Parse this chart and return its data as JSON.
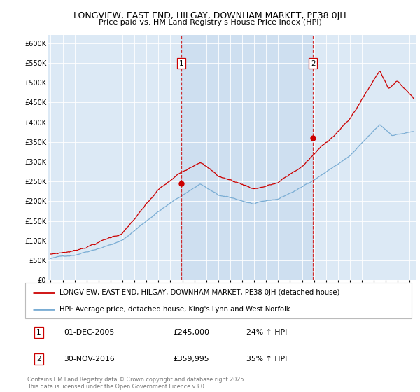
{
  "title": "LONGVIEW, EAST END, HILGAY, DOWNHAM MARKET, PE38 0JH",
  "subtitle": "Price paid vs. HM Land Registry's House Price Index (HPI)",
  "plot_bg_color": "#dce9f5",
  "shade_color": "#c5d9ee",
  "red_line_label": "LONGVIEW, EAST END, HILGAY, DOWNHAM MARKET, PE38 0JH (detached house)",
  "blue_line_label": "HPI: Average price, detached house, King's Lynn and West Norfolk",
  "red_color": "#cc0000",
  "blue_color": "#7aadd4",
  "ylim": [
    0,
    620000
  ],
  "ytick_vals": [
    0,
    50000,
    100000,
    150000,
    200000,
    250000,
    300000,
    350000,
    400000,
    450000,
    500000,
    550000,
    600000
  ],
  "sale1_date": "01-DEC-2005",
  "sale1_price": 245000,
  "sale1_pct": "24%",
  "sale1_x": 2005.92,
  "sale2_date": "30-NOV-2016",
  "sale2_price": 359995,
  "sale2_pct": "35%",
  "sale2_x": 2016.92,
  "footer": "Contains HM Land Registry data © Crown copyright and database right 2025.\nThis data is licensed under the Open Government Licence v3.0.",
  "xmin": 1994.8,
  "xmax": 2025.5
}
